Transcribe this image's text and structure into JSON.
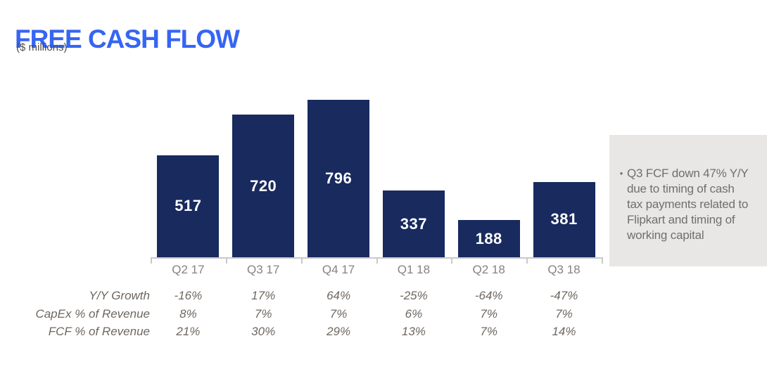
{
  "header": {
    "title": "FREE CASH FLOW",
    "subtitle": "($ millions)"
  },
  "chart_data": {
    "type": "bar",
    "title": "FREE CASH FLOW",
    "unit_label": "($ millions)",
    "categories": [
      "Q2 17",
      "Q3 17",
      "Q4 17",
      "Q1 18",
      "Q2 18",
      "Q3 18"
    ],
    "values": [
      517,
      720,
      796,
      337,
      188,
      381
    ],
    "ylim": [
      0,
      800
    ],
    "grid": false,
    "legend": "none",
    "bar_color": "#182A5E",
    "value_label_color": "#FFFFFF",
    "axis_color": "#C9C9C9"
  },
  "table": {
    "rows": [
      {
        "label": "Y/Y Growth",
        "values": [
          "-16%",
          "17%",
          "64%",
          "-25%",
          "-64%",
          "-47%"
        ]
      },
      {
        "label": "CapEx % of Revenue",
        "values": [
          "8%",
          "7%",
          "7%",
          "6%",
          "7%",
          "7%"
        ]
      },
      {
        "label": "FCF % of Revenue",
        "values": [
          "21%",
          "30%",
          "29%",
          "13%",
          "7%",
          "14%"
        ]
      }
    ]
  },
  "annotation": {
    "bullet": "•",
    "text": "Q3 FCF down 47% Y/Y\ndue to timing of cash\ntax payments related to\nFlipkart and timing of\nworking capital",
    "background": "#E8E7E5",
    "text_color": "#6F6F6F"
  },
  "colors": {
    "title_blue": "#3665F3",
    "bar_navy": "#182A5E",
    "table_gray": "#6E6760"
  }
}
